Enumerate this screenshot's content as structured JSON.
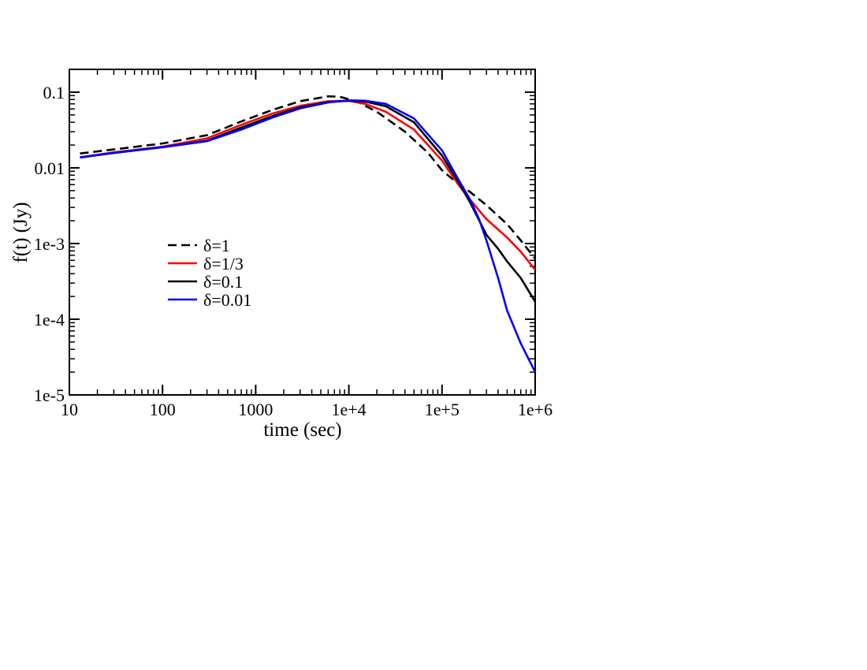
{
  "chart_data": {
    "type": "line",
    "title": "",
    "xlabel": "time (sec)",
    "ylabel": "f(t) (Jy)",
    "xscale": "log",
    "yscale": "log",
    "xlim": [
      10,
      1000000
    ],
    "ylim": [
      1e-05,
      0.2
    ],
    "grid": false,
    "legend_position": "center-left",
    "x_ticks": [
      {
        "value": 10,
        "label": "10"
      },
      {
        "value": 100,
        "label": "100"
      },
      {
        "value": 1000,
        "label": "1000"
      },
      {
        "value": 10000,
        "label": "1e+4"
      },
      {
        "value": 100000,
        "label": "1e+5"
      },
      {
        "value": 1000000,
        "label": "1e+6"
      }
    ],
    "y_ticks": [
      {
        "value": 0.1,
        "label": "0.1"
      },
      {
        "value": 0.01,
        "label": "0.01"
      },
      {
        "value": 0.001,
        "label": "1e-3"
      },
      {
        "value": 0.0001,
        "label": "1e-4"
      },
      {
        "value": 1e-05,
        "label": "1e-5"
      }
    ],
    "series": [
      {
        "name": "δ=1",
        "color": "#000000",
        "dashed": true,
        "x": [
          13,
          30,
          100,
          300,
          700,
          1500,
          3000,
          6000,
          8000,
          12000,
          20000,
          40000,
          70000,
          100000,
          150000,
          200000,
          300000,
          500000,
          700000,
          1000000
        ],
        "y": [
          0.0155,
          0.0175,
          0.021,
          0.027,
          0.041,
          0.058,
          0.076,
          0.088,
          0.087,
          0.076,
          0.055,
          0.03,
          0.016,
          0.0093,
          0.0061,
          0.0048,
          0.0032,
          0.0018,
          0.0011,
          0.00063
        ]
      },
      {
        "name": "δ=1/3",
        "color": "#ff0000",
        "dashed": false,
        "x": [
          13,
          30,
          100,
          300,
          700,
          1500,
          3000,
          6000,
          10000,
          15000,
          25000,
          50000,
          100000,
          150000,
          200000,
          300000,
          500000,
          700000,
          1000000
        ],
        "y": [
          0.0138,
          0.016,
          0.019,
          0.0245,
          0.037,
          0.052,
          0.066,
          0.076,
          0.077,
          0.07,
          0.055,
          0.032,
          0.0125,
          0.006,
          0.0038,
          0.0021,
          0.0012,
          0.00078,
          0.00045
        ]
      },
      {
        "name": "δ=0.1",
        "color": "#000000",
        "dashed": false,
        "x": [
          13,
          30,
          100,
          300,
          700,
          1500,
          3000,
          6000,
          10000,
          15000,
          25000,
          50000,
          100000,
          150000,
          200000,
          300000,
          400000,
          500000,
          700000,
          1000000
        ],
        "y": [
          0.0137,
          0.0158,
          0.0188,
          0.0228,
          0.034,
          0.048,
          0.063,
          0.074,
          0.077,
          0.075,
          0.065,
          0.04,
          0.0145,
          0.0065,
          0.0035,
          0.0013,
          0.00085,
          0.00058,
          0.00035,
          0.00017
        ]
      },
      {
        "name": "δ=0.01",
        "color": "#0000ff",
        "dashed": false,
        "x": [
          13,
          30,
          100,
          300,
          700,
          1500,
          3000,
          6000,
          10000,
          15000,
          25000,
          50000,
          100000,
          150000,
          200000,
          250000,
          300000,
          400000,
          500000,
          700000,
          1000000
        ],
        "y": [
          0.0137,
          0.0157,
          0.0187,
          0.0225,
          0.032,
          0.046,
          0.061,
          0.073,
          0.078,
          0.077,
          0.07,
          0.045,
          0.017,
          0.007,
          0.0038,
          0.0021,
          0.0011,
          0.00035,
          0.00013,
          4.8e-05,
          2e-05
        ]
      }
    ]
  }
}
